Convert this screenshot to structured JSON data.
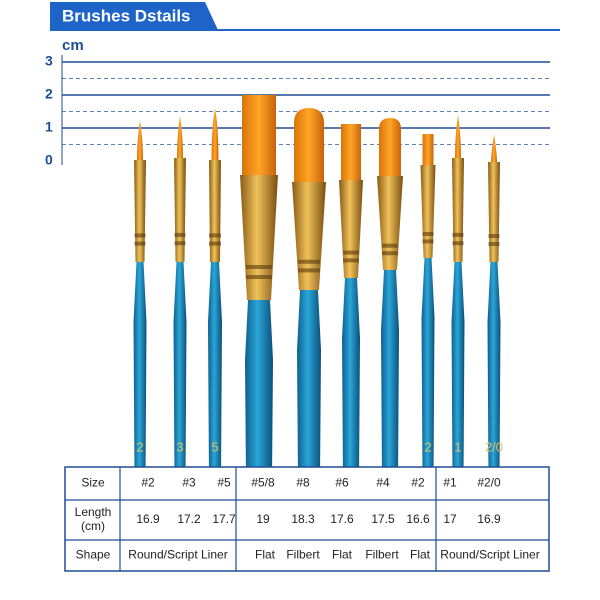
{
  "header": {
    "title": "Brushes Dstails"
  },
  "ruler": {
    "unit": "cm",
    "labels": [
      "3",
      "2",
      "1",
      "0"
    ]
  },
  "brushes": {
    "handle_labels": [
      "2",
      "3",
      "5",
      null,
      null,
      null,
      null,
      "2",
      "1",
      "2/0"
    ]
  },
  "table": {
    "rows": [
      {
        "label": "Size",
        "cells": [
          "#2",
          "#3",
          "#5",
          "#5/8",
          "#8",
          "#6",
          "#4",
          "#2",
          "#1",
          "#2/0"
        ]
      },
      {
        "label_lines": [
          "Length",
          "(cm)"
        ],
        "cells": [
          16.9,
          17.2,
          17.7,
          19,
          18.3,
          17.6,
          17.5,
          16.6,
          17,
          16.9
        ]
      },
      {
        "label": "Shape",
        "cells": [
          "Round/Script Liner",
          "Flat",
          "Filbert",
          "Flat",
          "Filbert",
          "Flat",
          "Round/Script Liner"
        ]
      }
    ]
  }
}
